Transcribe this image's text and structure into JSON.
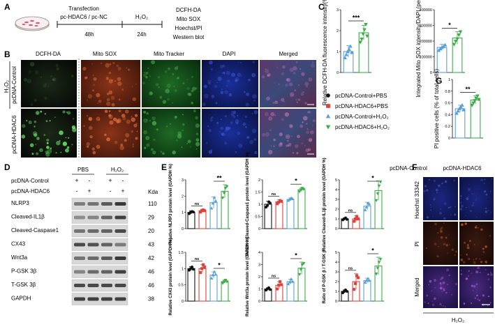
{
  "panels": {
    "A": {
      "letter": "A",
      "transfection_label": "Transfection",
      "plasmid_label": "pc-HDAC6 / pc-NC",
      "h2o2_label": "H₂O₂",
      "time1": "48h",
      "time2": "24h",
      "assays": [
        "DCFH-DA",
        "Mito SOX",
        "Hoechst/PI",
        "Western blot"
      ]
    },
    "B": {
      "letter": "B",
      "column_headers": [
        "DCFH-DA",
        "Mito SOX",
        "Mito Tracker",
        "DAPI",
        "Merged"
      ],
      "row_labels": [
        "pcDNA-Control",
        "pcDNA-HDAC6"
      ],
      "treatment_label": "H₂O₂"
    },
    "C": {
      "letter": "C"
    },
    "D": {
      "letter": "D",
      "group_labels": [
        "PBS",
        "H₂O₂"
      ],
      "row_labels": [
        "pcDNA-Control",
        "pcDNA-HDAC6"
      ],
      "row_signs": [
        [
          "+",
          "-",
          "+",
          "-"
        ],
        [
          "-",
          "+",
          "-",
          "+"
        ]
      ],
      "kda_header": "Kda",
      "blots": [
        {
          "name": "NLRP3",
          "kda": "110"
        },
        {
          "name": "Cleaved-IL1β",
          "kda": "29"
        },
        {
          "name": "Cleaved-Caspase1",
          "kda": "20"
        },
        {
          "name": "CX43",
          "kda": "43"
        },
        {
          "name": "Wnt3a",
          "kda": "42"
        },
        {
          "name": "P-GSK 3β",
          "kda": "46"
        },
        {
          "name": "T-GSK 3β",
          "kda": "46"
        },
        {
          "name": "GAPDH",
          "kda": "38"
        }
      ]
    },
    "E": {
      "letter": "E"
    },
    "F": {
      "letter": "F",
      "column_headers": [
        "pcDNA-Control",
        "pcDNA-HDAC6"
      ],
      "row_labels": [
        "Hoechst 33342",
        "PI",
        "Merged"
      ],
      "treatment_label": "H₂O₂"
    },
    "G": {
      "letter": "G"
    }
  },
  "legend": {
    "items": [
      {
        "label": "pcDNA-Control+PBS",
        "marker": "circle",
        "color": "#111111"
      },
      {
        "label": "pcDNA-HDAC6+PBS",
        "marker": "square",
        "color": "#e0403a"
      },
      {
        "label": "pcDNA-Control+H₂O₂",
        "marker": "triangle-up",
        "color": "#5aa0d8"
      },
      {
        "label": "pcDNA-HDAC6+H₂O₂",
        "marker": "triangle-down",
        "color": "#3dab4a"
      }
    ]
  },
  "colors": {
    "control_h2o2": "#5aa0d8",
    "hdac6_h2o2": "#3dab4a",
    "control_pbs": "#111111",
    "hdac6_pbs": "#e0403a"
  },
  "chart_data": [
    {
      "id": "C1",
      "type": "bar",
      "ylabel": "Relative DCFH-DA fluorescence intensity(% control)",
      "ylim": [
        0,
        3
      ],
      "yticks": [
        0,
        1,
        2,
        3
      ],
      "categories": [
        "pcDNA-Control+H₂O₂",
        "pcDNA-HDAC6+H₂O₂"
      ],
      "values": [
        1.0,
        1.9
      ],
      "errors": [
        0.28,
        0.35
      ],
      "points": [
        [
          0.7,
          0.85,
          1.0,
          1.1,
          1.25,
          0.95
        ],
        [
          1.45,
          1.6,
          1.85,
          2.05,
          2.3,
          1.75
        ]
      ],
      "sig": [
        {
          "from": 0,
          "to": 1,
          "text": "***"
        }
      ]
    },
    {
      "id": "C2",
      "type": "bar",
      "ylabel": "Integrated Mito SOX intensity/DAPI (per field)",
      "ylim": [
        0,
        400000
      ],
      "yticks": [
        0,
        100000,
        200000,
        300000,
        400000
      ],
      "categories": [
        "pcDNA-Control+H₂O₂",
        "pcDNA-HDAC6+H₂O₂"
      ],
      "values": [
        160000,
        220000
      ],
      "errors": [
        20000,
        40000
      ],
      "points": [
        [
          140000,
          150000,
          160000,
          165000,
          175000
        ],
        [
          180000,
          200000,
          215000,
          240000,
          260000
        ]
      ],
      "sig": [
        {
          "from": 0,
          "to": 1,
          "text": "*"
        }
      ]
    },
    {
      "id": "G",
      "type": "bar",
      "ylabel": "PI positive cells (% of total cells)",
      "ylim": [
        0,
        1.0
      ],
      "yticks": [
        0,
        0.2,
        0.4,
        0.6,
        0.8,
        1.0
      ],
      "categories": [
        "pcDNA-Control+H₂O₂",
        "pcDNA-HDAC6+H₂O₂"
      ],
      "values": [
        0.5,
        0.65
      ],
      "errors": [
        0.06,
        0.07
      ],
      "points": [
        [
          0.42,
          0.46,
          0.5,
          0.53,
          0.56,
          0.48
        ],
        [
          0.56,
          0.6,
          0.64,
          0.68,
          0.72,
          0.66
        ]
      ],
      "sig": [
        {
          "from": 0,
          "to": 1,
          "text": "**"
        }
      ]
    },
    {
      "id": "E1",
      "type": "bar",
      "ylabel": "Relative NLRP3 protein level (GAPDH %)",
      "ylim": [
        0,
        3
      ],
      "yticks": [
        0,
        1,
        2,
        3
      ],
      "categories": [
        "pcDNA-Control+PBS",
        "pcDNA-HDAC6+PBS",
        "pcDNA-Control+H₂O₂",
        "pcDNA-HDAC6+H₂O₂"
      ],
      "values": [
        1.0,
        1.1,
        1.6,
        2.3
      ],
      "errors": [
        0.1,
        0.08,
        0.35,
        0.4
      ],
      "points": [
        [
          0.92,
          1.0,
          1.05,
          1.02
        ],
        [
          1.02,
          1.1,
          1.15,
          1.1
        ],
        [
          1.25,
          1.55,
          1.9,
          1.7
        ],
        [
          1.9,
          2.2,
          2.5,
          2.6
        ]
      ],
      "sig": [
        {
          "from": 0,
          "to": 1,
          "text": "ns"
        },
        {
          "from": 2,
          "to": 3,
          "text": "**"
        }
      ]
    },
    {
      "id": "E2",
      "type": "bar",
      "ylabel": "Relative Cleaved-Caspase1 protein level (GAPDH %)",
      "ylim": [
        0,
        2.0
      ],
      "yticks": [
        0,
        0.5,
        1.0,
        1.5,
        2.0
      ],
      "categories": [
        "pcDNA-Control+PBS",
        "pcDNA-HDAC6+PBS",
        "pcDNA-Control+H₂O₂",
        "pcDNA-HDAC6+H₂O₂"
      ],
      "values": [
        1.0,
        1.1,
        1.2,
        1.6
      ],
      "errors": [
        0.12,
        0.08,
        0.06,
        0.08
      ],
      "points": [
        [
          0.88,
          0.95,
          1.1,
          1.05
        ],
        [
          1.02,
          1.08,
          1.15,
          1.12
        ],
        [
          1.15,
          1.2,
          1.25,
          1.22
        ],
        [
          1.52,
          1.6,
          1.66,
          1.62
        ]
      ],
      "sig": [
        {
          "from": 0,
          "to": 1,
          "text": "ns"
        },
        {
          "from": 2,
          "to": 3,
          "text": "*"
        }
      ]
    },
    {
      "id": "E3",
      "type": "bar",
      "ylabel": "Relative Cleaved-IL1β protein level (GAPDH %)",
      "ylim": [
        0,
        5
      ],
      "yticks": [
        0,
        1,
        2,
        3,
        4,
        5
      ],
      "categories": [
        "pcDNA-Control+PBS",
        "pcDNA-HDAC6+PBS",
        "pcDNA-Control+H₂O₂",
        "pcDNA-HDAC6+H₂O₂"
      ],
      "values": [
        1.0,
        1.0,
        2.3,
        3.9
      ],
      "errors": [
        0.1,
        0.3,
        0.4,
        1.0
      ],
      "points": [
        [
          0.9,
          1.0,
          1.1,
          0.95
        ],
        [
          0.75,
          1.0,
          1.25,
          1.0
        ],
        [
          1.9,
          2.2,
          2.6,
          2.5
        ],
        [
          2.9,
          3.6,
          4.4,
          4.8
        ]
      ],
      "sig": [
        {
          "from": 0,
          "to": 1,
          "text": "ns"
        },
        {
          "from": 2,
          "to": 3,
          "text": "*"
        }
      ]
    },
    {
      "id": "E4",
      "type": "bar",
      "ylabel": "Relative CX43 protein level (GAPDH %)",
      "ylim": [
        0,
        1.5
      ],
      "yticks": [
        0,
        0.5,
        1.0,
        1.5
      ],
      "categories": [
        "pcDNA-Control+PBS",
        "pcDNA-HDAC6+PBS",
        "pcDNA-Control+H₂O₂",
        "pcDNA-HDAC6+H₂O₂"
      ],
      "values": [
        1.0,
        1.0,
        0.8,
        0.6
      ],
      "errors": [
        0.06,
        0.12,
        0.1,
        0.05
      ],
      "points": [
        [
          0.95,
          1.0,
          1.05,
          0.98
        ],
        [
          0.88,
          1.0,
          1.12,
          1.05
        ],
        [
          0.7,
          0.8,
          0.9,
          0.82
        ],
        [
          0.55,
          0.6,
          0.65,
          0.6
        ]
      ],
      "sig": [
        {
          "from": 0,
          "to": 1,
          "text": "ns"
        },
        {
          "from": 2,
          "to": 3,
          "text": "*"
        }
      ]
    },
    {
      "id": "E5",
      "type": "bar",
      "ylabel": "Relative Wnt3a protein level (GAPDH %)",
      "ylim": [
        0,
        4
      ],
      "yticks": [
        0,
        1,
        2,
        3,
        4
      ],
      "categories": [
        "pcDNA-Control+PBS",
        "pcDNA-HDAC6+PBS",
        "pcDNA-Control+H₂O₂",
        "pcDNA-HDAC6+H₂O₂"
      ],
      "values": [
        1.0,
        1.3,
        1.6,
        2.7
      ],
      "errors": [
        0.1,
        0.3,
        0.2,
        0.5
      ],
      "points": [
        [
          0.9,
          1.0,
          1.1,
          0.95
        ],
        [
          1.0,
          1.3,
          1.6,
          1.35
        ],
        [
          1.4,
          1.55,
          1.8,
          1.6
        ],
        [
          2.2,
          2.6,
          3.0,
          3.1
        ]
      ],
      "sig": [
        {
          "from": 0,
          "to": 1,
          "text": "ns"
        },
        {
          "from": 2,
          "to": 3,
          "text": "*"
        }
      ]
    },
    {
      "id": "E6",
      "type": "bar",
      "ylabel": "Ratio of P-GSK β / T-GSK β",
      "ylim": [
        0,
        5
      ],
      "yticks": [
        0,
        1,
        2,
        3,
        4,
        5
      ],
      "categories": [
        "pcDNA-Control+PBS",
        "pcDNA-HDAC6+PBS",
        "pcDNA-Control+H₂O₂",
        "pcDNA-HDAC6+H₂O₂"
      ],
      "values": [
        1.0,
        2.0,
        2.1,
        3.6
      ],
      "errors": [
        0.15,
        0.8,
        0.25,
        0.9
      ],
      "points": [
        [
          0.85,
          1.0,
          1.15,
          1.0
        ],
        [
          1.2,
          1.8,
          2.6,
          2.4
        ],
        [
          1.9,
          2.1,
          2.3,
          2.1
        ],
        [
          2.8,
          3.4,
          4.0,
          4.3
        ]
      ],
      "sig": [
        {
          "from": 0,
          "to": 1,
          "text": "ns"
        },
        {
          "from": 2,
          "to": 3,
          "text": "*"
        }
      ]
    }
  ]
}
